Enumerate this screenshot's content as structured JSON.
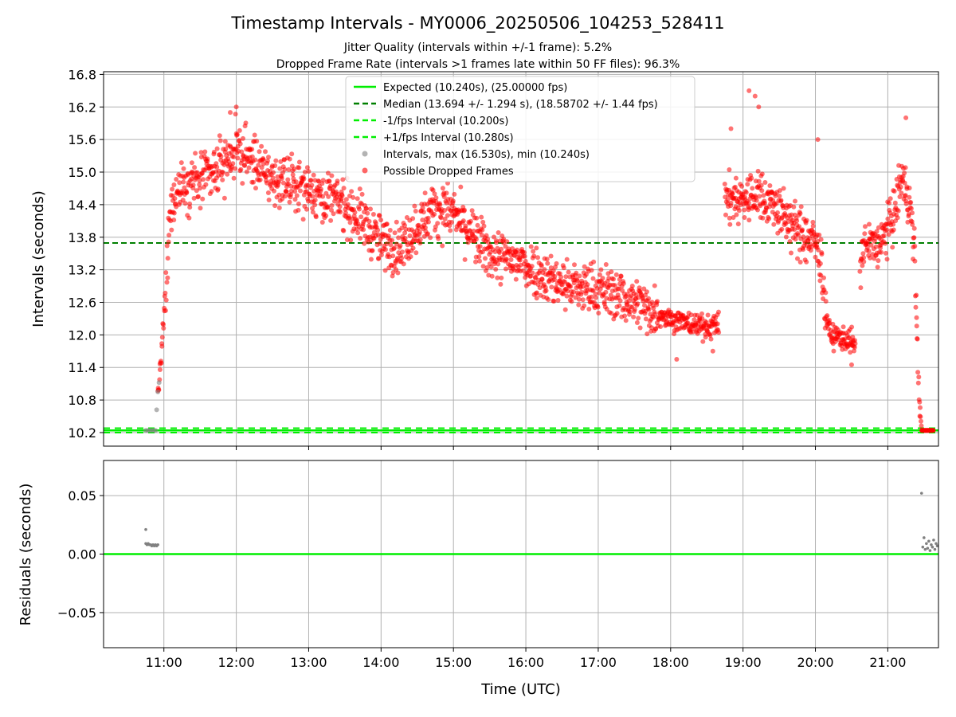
{
  "chart_data": [
    {
      "type": "scatter",
      "title": "Timestamp Intervals - MY0006_20250506_104253_528411",
      "subtitle_lines": [
        "Jitter Quality (intervals within +/-1 frame): 5.2%",
        "Dropped Frame Rate (intervals >1 frames late within 50 FF files): 96.3%"
      ],
      "xlabel": "",
      "ylabel": "Intervals (seconds)",
      "xlim": [
        "10:10",
        "21:42"
      ],
      "ylim": [
        9.95,
        16.85
      ],
      "yticks": [
        "10.2",
        "10.8",
        "11.4",
        "12.0",
        "12.6",
        "13.2",
        "13.8",
        "14.4",
        "15.0",
        "15.6",
        "16.2",
        "16.8"
      ],
      "grid": true,
      "legend_position": "top-center",
      "legend": [
        "Expected (10.240s), (25.00000 fps)",
        "Median (13.694 +/- 1.294 s), (18.58702 +/- 1.44 fps)",
        "-1/fps Interval (10.200s)",
        "+1/fps Interval (10.280s)",
        "Intervals, max (16.530s), min (10.240s)",
        "Possible Dropped Frames"
      ],
      "lines": [
        {
          "value": 10.24,
          "style": "solid",
          "color": "#00ee00"
        },
        {
          "value": 13.694,
          "style": "dashed",
          "color": "#007f00"
        },
        {
          "value": 10.2,
          "style": "dashed",
          "color": "#00ee00"
        },
        {
          "value": 10.28,
          "style": "dashed",
          "color": "#00ee00"
        }
      ],
      "intervals_points": [
        [
          "10:45",
          10.24
        ],
        [
          "10:47",
          10.24
        ],
        [
          "10:49",
          10.24
        ],
        [
          "10:51",
          10.24
        ],
        [
          "10:53",
          10.24
        ],
        [
          "10:54",
          10.62
        ],
        [
          "10:55",
          10.95
        ],
        [
          "10:56",
          11.12
        ]
      ],
      "dropped_trend": [
        [
          "10:55",
          10.9
        ],
        [
          "10:57",
          11.35
        ],
        [
          "10:59",
          11.95
        ],
        [
          "11:02",
          12.9
        ],
        [
          "11:04",
          13.8
        ],
        [
          "11:07",
          14.5
        ],
        [
          "11:15",
          14.8
        ],
        [
          "11:30",
          14.85
        ],
        [
          "11:45",
          15.05
        ],
        [
          "12:00",
          15.4
        ],
        [
          "12:15",
          15.2
        ],
        [
          "12:30",
          14.85
        ],
        [
          "12:45",
          14.8
        ],
        [
          "13:00",
          14.7
        ],
        [
          "13:15",
          14.55
        ],
        [
          "13:30",
          14.4
        ],
        [
          "13:45",
          14.1
        ],
        [
          "14:00",
          13.7
        ],
        [
          "14:15",
          13.6
        ],
        [
          "14:30",
          14.0
        ],
        [
          "14:45",
          14.35
        ],
        [
          "15:00",
          14.25
        ],
        [
          "15:15",
          13.85
        ],
        [
          "15:30",
          13.5
        ],
        [
          "15:45",
          13.4
        ],
        [
          "16:00",
          13.3
        ],
        [
          "16:15",
          13.1
        ],
        [
          "16:30",
          12.95
        ],
        [
          "16:45",
          12.85
        ],
        [
          "17:00",
          12.85
        ],
        [
          "17:15",
          12.75
        ],
        [
          "17:30",
          12.6
        ],
        [
          "17:45",
          12.45
        ],
        [
          "18:00",
          12.3
        ],
        [
          "18:15",
          12.2
        ],
        [
          "18:30",
          12.15
        ],
        [
          "18:40",
          12.2
        ]
      ],
      "dropped_segment2": [
        [
          "18:45",
          14.5
        ],
        [
          "19:00",
          14.5
        ],
        [
          "19:15",
          14.6
        ],
        [
          "19:30",
          14.3
        ],
        [
          "19:45",
          13.9
        ],
        [
          "20:00",
          13.7
        ],
        [
          "20:05",
          13.3
        ],
        [
          "20:08",
          12.5
        ],
        [
          "20:12",
          12.0
        ],
        [
          "20:30",
          11.9
        ],
        [
          "20:33",
          11.7
        ]
      ],
      "dropped_segment3": [
        [
          "20:37",
          13.3
        ],
        [
          "20:40",
          13.6
        ],
        [
          "20:55",
          13.7
        ],
        [
          "21:05",
          14.2
        ],
        [
          "21:12",
          14.9
        ],
        [
          "21:18",
          14.4
        ],
        [
          "21:22",
          13.6
        ],
        [
          "21:24",
          12.2
        ],
        [
          "21:25",
          11.5
        ],
        [
          "21:26",
          10.8
        ],
        [
          "21:28",
          10.24
        ],
        [
          "21:38",
          10.24
        ]
      ]
    },
    {
      "type": "scatter",
      "title": "",
      "xlabel": "Time (UTC)",
      "ylabel": "Residuals (seconds)",
      "xlim": [
        "10:10",
        "21:42"
      ],
      "ylim": [
        -0.08,
        0.08
      ],
      "xticks": [
        "11:00",
        "12:00",
        "13:00",
        "14:00",
        "15:00",
        "16:00",
        "17:00",
        "18:00",
        "19:00",
        "20:00",
        "21:00"
      ],
      "yticks": [
        "0.05",
        "0.00",
        "−0.05"
      ],
      "grid": true,
      "zero_line": {
        "value": 0.0,
        "color": "#00ee00"
      },
      "residual_points": [
        [
          "10:45",
          0.021
        ],
        [
          "10:45",
          0.009
        ],
        [
          "10:46",
          0.008
        ],
        [
          "10:47",
          0.009
        ],
        [
          "10:48",
          0.008
        ],
        [
          "10:49",
          0.008
        ],
        [
          "10:50",
          0.007
        ],
        [
          "10:51",
          0.008
        ],
        [
          "10:52",
          0.007
        ],
        [
          "10:53",
          0.008
        ],
        [
          "10:54",
          0.007
        ],
        [
          "10:55",
          0.008
        ],
        [
          "21:28",
          0.052
        ],
        [
          "21:29",
          0.006
        ],
        [
          "21:30",
          0.014
        ],
        [
          "21:31",
          0.004
        ],
        [
          "21:32",
          0.009
        ],
        [
          "21:33",
          0.005
        ],
        [
          "21:34",
          0.011
        ],
        [
          "21:35",
          0.003
        ],
        [
          "21:36",
          0.008
        ],
        [
          "21:37",
          0.006
        ],
        [
          "21:38",
          0.012
        ],
        [
          "21:39",
          0.004
        ],
        [
          "21:40",
          0.009
        ],
        [
          "21:41",
          0.007
        ]
      ]
    }
  ],
  "colors": {
    "dropped": "#ff0000",
    "intervals": "#808080",
    "expected": "#00ee00",
    "median": "#007f00",
    "grid": "#b0b0b0"
  }
}
